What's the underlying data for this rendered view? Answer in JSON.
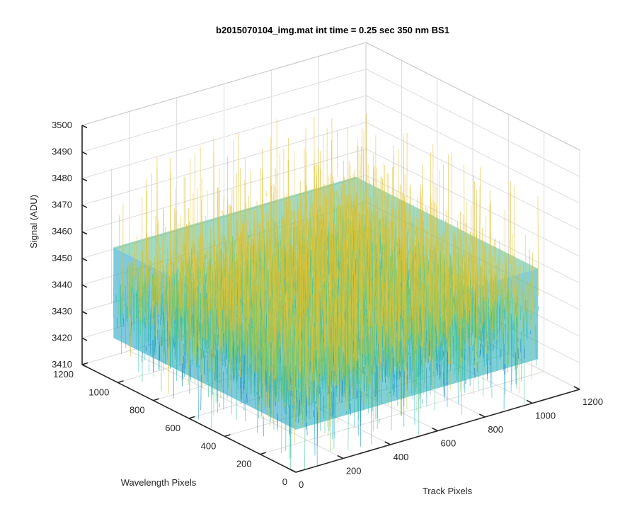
{
  "chart_data": {
    "type": "surface",
    "title": "b2015070104_img.mat int time = 0.25 sec  350 nm BS1",
    "xlabel": "Track Pixels",
    "ylabel": "Wavelength Pixels",
    "zlabel": "Signal (ADU)",
    "xlim": [
      0,
      1200
    ],
    "ylim": [
      0,
      1200
    ],
    "zlim": [
      3410,
      3500
    ],
    "x_ticks": [
      "0",
      "200",
      "400",
      "600",
      "800",
      "1000",
      "1200"
    ],
    "y_ticks": [
      "0",
      "200",
      "400",
      "600",
      "800",
      "1000",
      "1200"
    ],
    "z_ticks": [
      "3410",
      "3420",
      "3430",
      "3440",
      "3450",
      "3460",
      "3470",
      "3480",
      "3490",
      "3500"
    ],
    "x_range": [
      0,
      1024
    ],
    "y_range": [
      0,
      1024
    ],
    "z_mean": 3442,
    "z_typical_range": [
      3425,
      3465
    ],
    "z_extreme_range": [
      3410,
      3495
    ],
    "grid": true,
    "colormap": [
      "#0d6fb8",
      "#1e98cf",
      "#2db7bf",
      "#3dc49a",
      "#83c765",
      "#c6c33f",
      "#e6c131"
    ]
  }
}
